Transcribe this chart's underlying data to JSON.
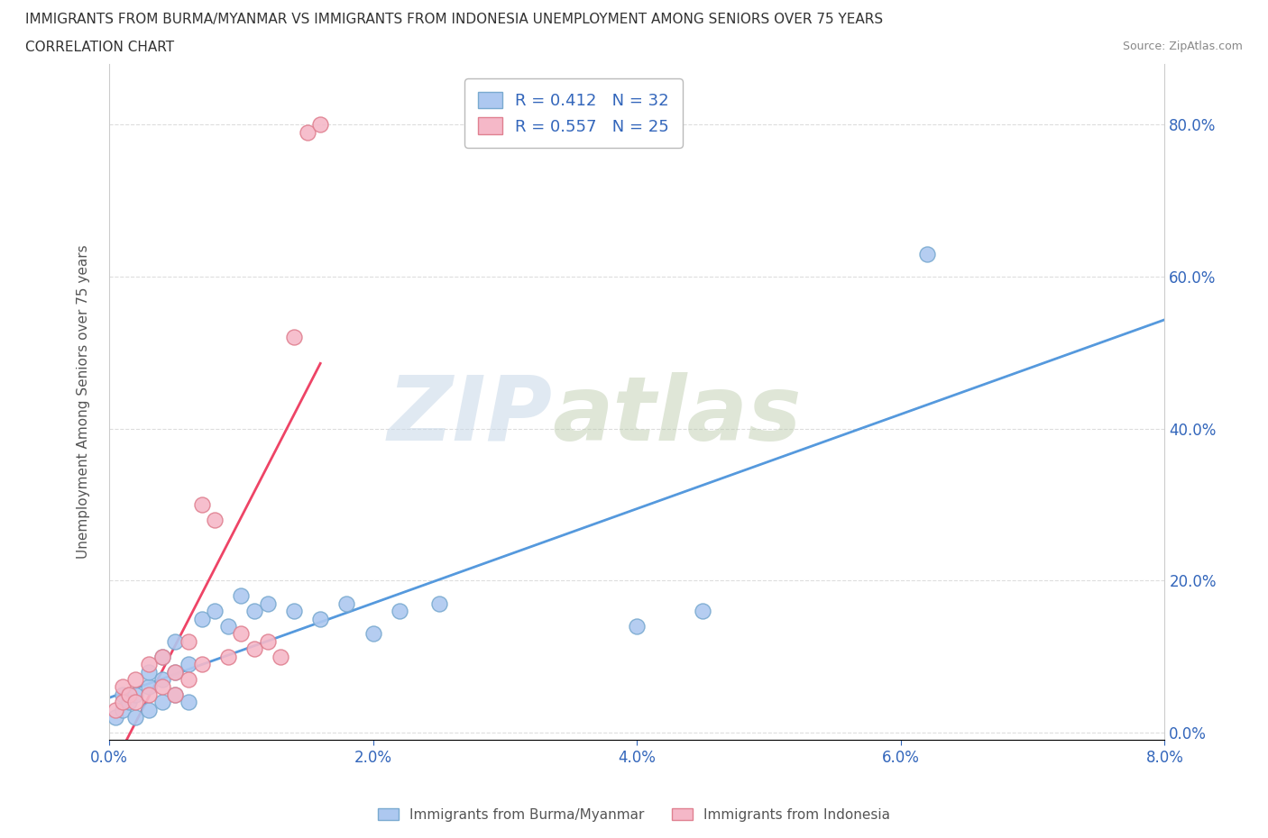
{
  "title_line1": "IMMIGRANTS FROM BURMA/MYANMAR VS IMMIGRANTS FROM INDONESIA UNEMPLOYMENT AMONG SENIORS OVER 75 YEARS",
  "title_line2": "CORRELATION CHART",
  "source_text": "Source: ZipAtlas.com",
  "ylabel": "Unemployment Among Seniors over 75 years",
  "xlim": [
    0.0,
    0.08
  ],
  "ylim": [
    -0.01,
    0.88
  ],
  "xtick_labels": [
    "0.0%",
    "2.0%",
    "4.0%",
    "6.0%",
    "8.0%"
  ],
  "xtick_values": [
    0.0,
    0.02,
    0.04,
    0.06,
    0.08
  ],
  "ytick_labels": [
    "0.0%",
    "20.0%",
    "40.0%",
    "60.0%",
    "80.0%"
  ],
  "ytick_values": [
    0.0,
    0.2,
    0.4,
    0.6,
    0.8
  ],
  "burma_color": "#adc8f0",
  "burma_edge_color": "#7aaad0",
  "indonesia_color": "#f5b8c8",
  "indonesia_edge_color": "#e08090",
  "burma_line_color": "#5599dd",
  "indonesia_line_color": "#ee4466",
  "R_burma": 0.412,
  "N_burma": 32,
  "R_indonesia": 0.557,
  "N_indonesia": 25,
  "watermark": "ZIPatlas",
  "watermark_color": "#c0d4e8",
  "legend_label_burma": "Immigrants from Burma/Myanmar",
  "legend_label_indonesia": "Immigrants from Indonesia",
  "burma_x": [
    0.0005,
    0.001,
    0.001,
    0.0015,
    0.002,
    0.002,
    0.003,
    0.003,
    0.003,
    0.004,
    0.004,
    0.004,
    0.005,
    0.005,
    0.005,
    0.006,
    0.006,
    0.007,
    0.008,
    0.009,
    0.01,
    0.011,
    0.012,
    0.014,
    0.016,
    0.018,
    0.02,
    0.022,
    0.025,
    0.04,
    0.045,
    0.062
  ],
  "burma_y": [
    0.02,
    0.03,
    0.05,
    0.04,
    0.02,
    0.05,
    0.03,
    0.06,
    0.08,
    0.04,
    0.07,
    0.1,
    0.05,
    0.08,
    0.12,
    0.04,
    0.09,
    0.15,
    0.16,
    0.14,
    0.18,
    0.16,
    0.17,
    0.16,
    0.15,
    0.17,
    0.13,
    0.16,
    0.17,
    0.14,
    0.16,
    0.63
  ],
  "indonesia_x": [
    0.0005,
    0.001,
    0.001,
    0.0015,
    0.002,
    0.002,
    0.003,
    0.003,
    0.004,
    0.004,
    0.005,
    0.005,
    0.006,
    0.006,
    0.007,
    0.007,
    0.008,
    0.009,
    0.01,
    0.011,
    0.012,
    0.013,
    0.014,
    0.015,
    0.016
  ],
  "indonesia_y": [
    0.03,
    0.04,
    0.06,
    0.05,
    0.04,
    0.07,
    0.05,
    0.09,
    0.06,
    0.1,
    0.05,
    0.08,
    0.07,
    0.12,
    0.09,
    0.3,
    0.28,
    0.1,
    0.13,
    0.11,
    0.12,
    0.1,
    0.52,
    0.79,
    0.8
  ],
  "background_color": "#ffffff",
  "grid_color": "#dddddd",
  "grid_linestyle": "--"
}
